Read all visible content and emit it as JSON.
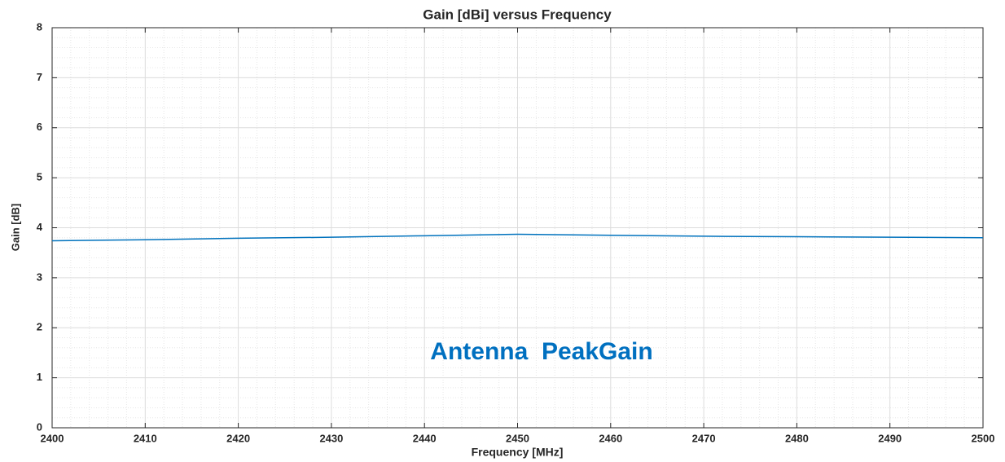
{
  "chart_data": {
    "type": "line",
    "title": "Gain [dBi] versus Frequency",
    "xlabel": "Frequency [MHz]",
    "ylabel": "Gain [dB]",
    "annotation": "Antenna  PeakGain",
    "x": [
      2400,
      2410,
      2420,
      2430,
      2440,
      2450,
      2460,
      2470,
      2480,
      2490,
      2500
    ],
    "series": [
      {
        "name": "Peak Gain",
        "color": "#0072bd",
        "values": [
          3.74,
          3.76,
          3.79,
          3.81,
          3.84,
          3.87,
          3.85,
          3.83,
          3.82,
          3.81,
          3.8
        ]
      }
    ],
    "xlim": [
      2400,
      2500
    ],
    "xticks": [
      2400,
      2410,
      2420,
      2430,
      2440,
      2450,
      2460,
      2470,
      2480,
      2490,
      2500
    ],
    "ylim": [
      0,
      8
    ],
    "yticks": [
      0,
      1,
      2,
      3,
      4,
      5,
      6,
      7,
      8
    ],
    "grid": true,
    "minor_grid": true
  }
}
